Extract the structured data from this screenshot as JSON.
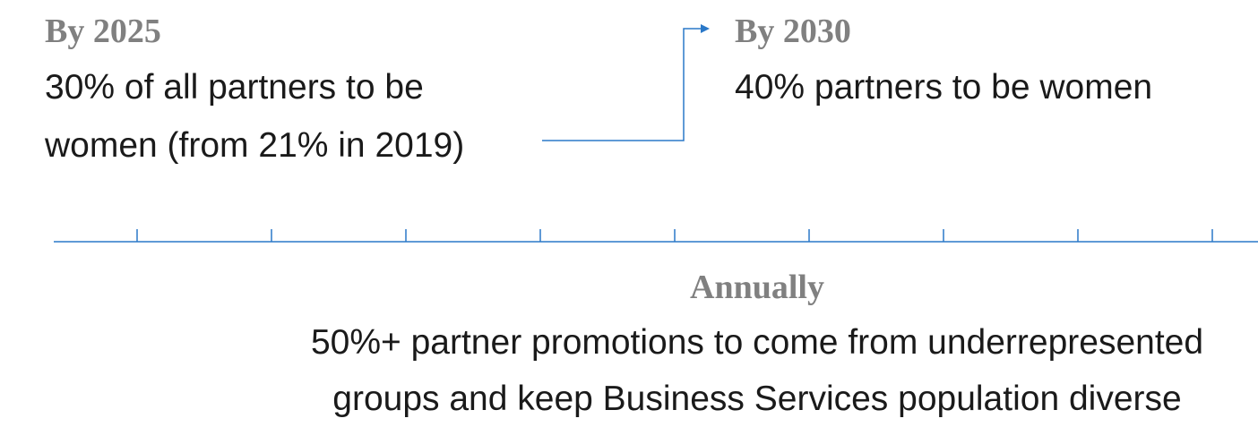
{
  "goals": [
    {
      "heading": "By 2025",
      "lines": [
        "30% of all partners to be",
        "women (from 21% in 2019)"
      ]
    },
    {
      "heading": "By 2030",
      "lines": [
        "40% partners to be women"
      ]
    },
    {
      "heading": "Annually",
      "lines": [
        "50%+ partner promotions to come from underrepresented",
        "groups and keep Business Services population diverse"
      ]
    }
  ]
}
